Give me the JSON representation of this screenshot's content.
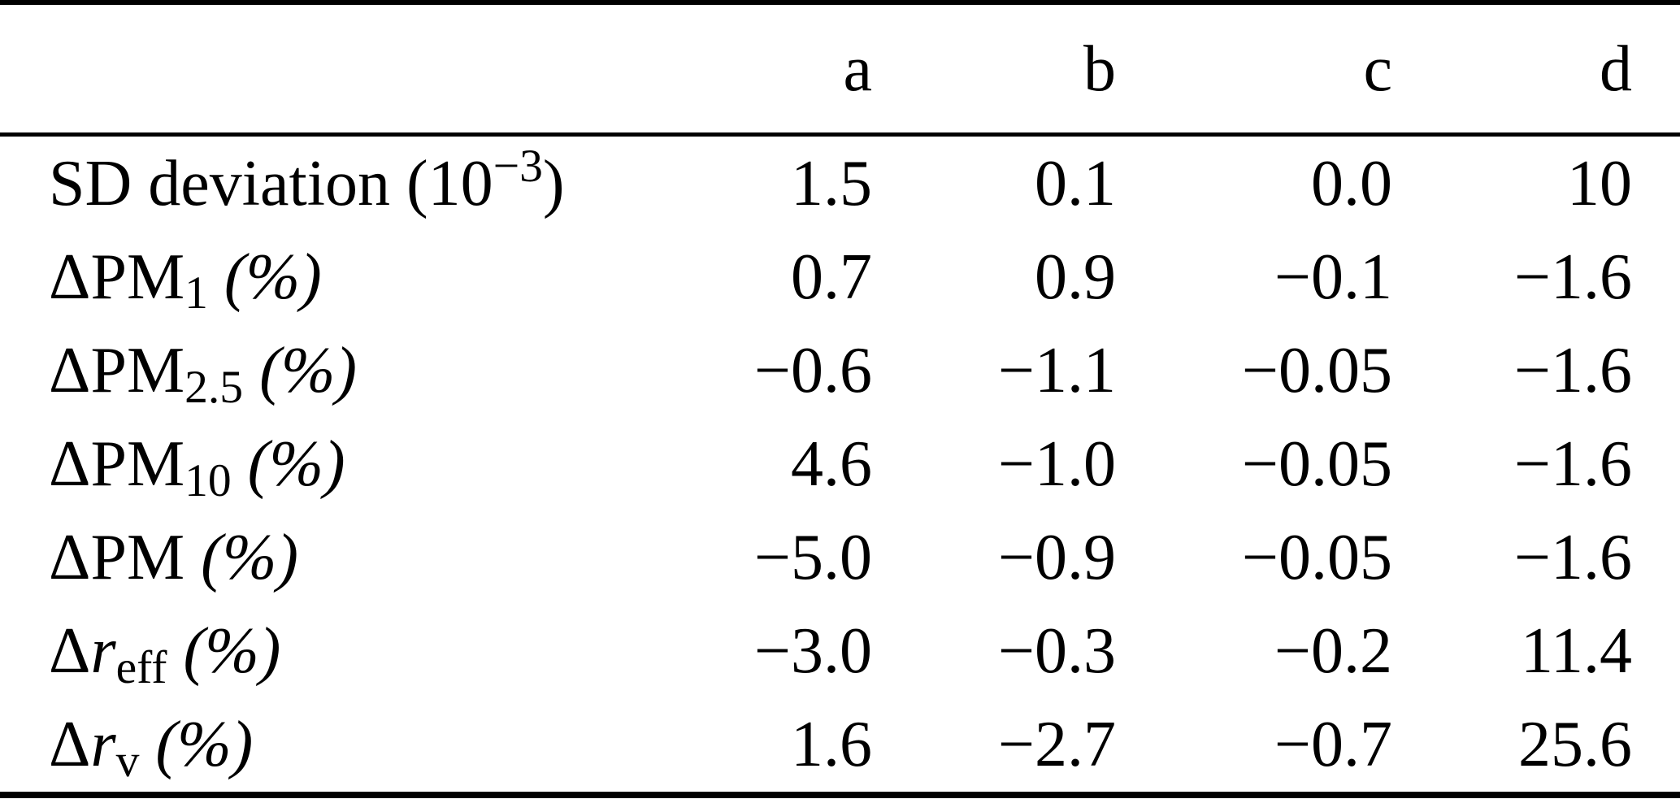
{
  "table": {
    "description": "Table of spectral fit deviations for cases a, b, c, d",
    "column_headers": [
      "a",
      "b",
      "c",
      "d"
    ],
    "rows": [
      {
        "label_plain": "SD deviation (10^-3)",
        "label_segments": [
          {
            "t": "SD deviation (10",
            "s": "n"
          },
          {
            "t": "−3",
            "s": "sup"
          },
          {
            "t": ")",
            "s": "n"
          }
        ],
        "values": [
          "1.5",
          "0.1",
          "0.0",
          "10"
        ]
      },
      {
        "label_plain": "ΔPM_1 (%)",
        "label_segments": [
          {
            "t": "ΔPM",
            "s": "n"
          },
          {
            "t": "1",
            "s": "sub"
          },
          {
            "t": " ",
            "s": "n"
          },
          {
            "t": "(%)",
            "s": "i"
          }
        ],
        "values": [
          "0.7",
          "0.9",
          "−0.1",
          "−1.6"
        ]
      },
      {
        "label_plain": "ΔPM_2.5 (%)",
        "label_segments": [
          {
            "t": "ΔPM",
            "s": "n"
          },
          {
            "t": "2.5",
            "s": "sub"
          },
          {
            "t": " ",
            "s": "n"
          },
          {
            "t": "(%)",
            "s": "i"
          }
        ],
        "values": [
          "−0.6",
          "−1.1",
          "−0.05",
          "−1.6"
        ]
      },
      {
        "label_plain": "ΔPM_10 (%)",
        "label_segments": [
          {
            "t": "ΔPM",
            "s": "n"
          },
          {
            "t": "10",
            "s": "sub"
          },
          {
            "t": " ",
            "s": "n"
          },
          {
            "t": "(%)",
            "s": "i"
          }
        ],
        "values": [
          "4.6",
          "−1.0",
          "−0.05",
          "−1.6"
        ]
      },
      {
        "label_plain": "ΔPM (%)",
        "label_segments": [
          {
            "t": "ΔPM ",
            "s": "n"
          },
          {
            "t": "(%)",
            "s": "i"
          }
        ],
        "values": [
          "−5.0",
          "−0.9",
          "−0.05",
          "−1.6"
        ]
      },
      {
        "label_plain": "Δr_eff (%)",
        "label_segments": [
          {
            "t": "Δ",
            "s": "n"
          },
          {
            "t": "r",
            "s": "i"
          },
          {
            "t": "eff",
            "s": "sub"
          },
          {
            "t": " ",
            "s": "n"
          },
          {
            "t": "(%)",
            "s": "i"
          }
        ],
        "values": [
          "−3.0",
          "−0.3",
          "−0.2",
          "11.4"
        ]
      },
      {
        "label_plain": "Δr_v (%)",
        "label_segments": [
          {
            "t": "Δ",
            "s": "n"
          },
          {
            "t": "r",
            "s": "i"
          },
          {
            "t": "v",
            "s": "sub"
          },
          {
            "t": " ",
            "s": "n"
          },
          {
            "t": "(%)",
            "s": "i"
          }
        ],
        "values": [
          "1.6",
          "−2.7",
          "−0.7",
          "25.6"
        ]
      }
    ]
  },
  "colors": {
    "text": "#000000",
    "background": "#ffffff",
    "rule": "#000000"
  }
}
